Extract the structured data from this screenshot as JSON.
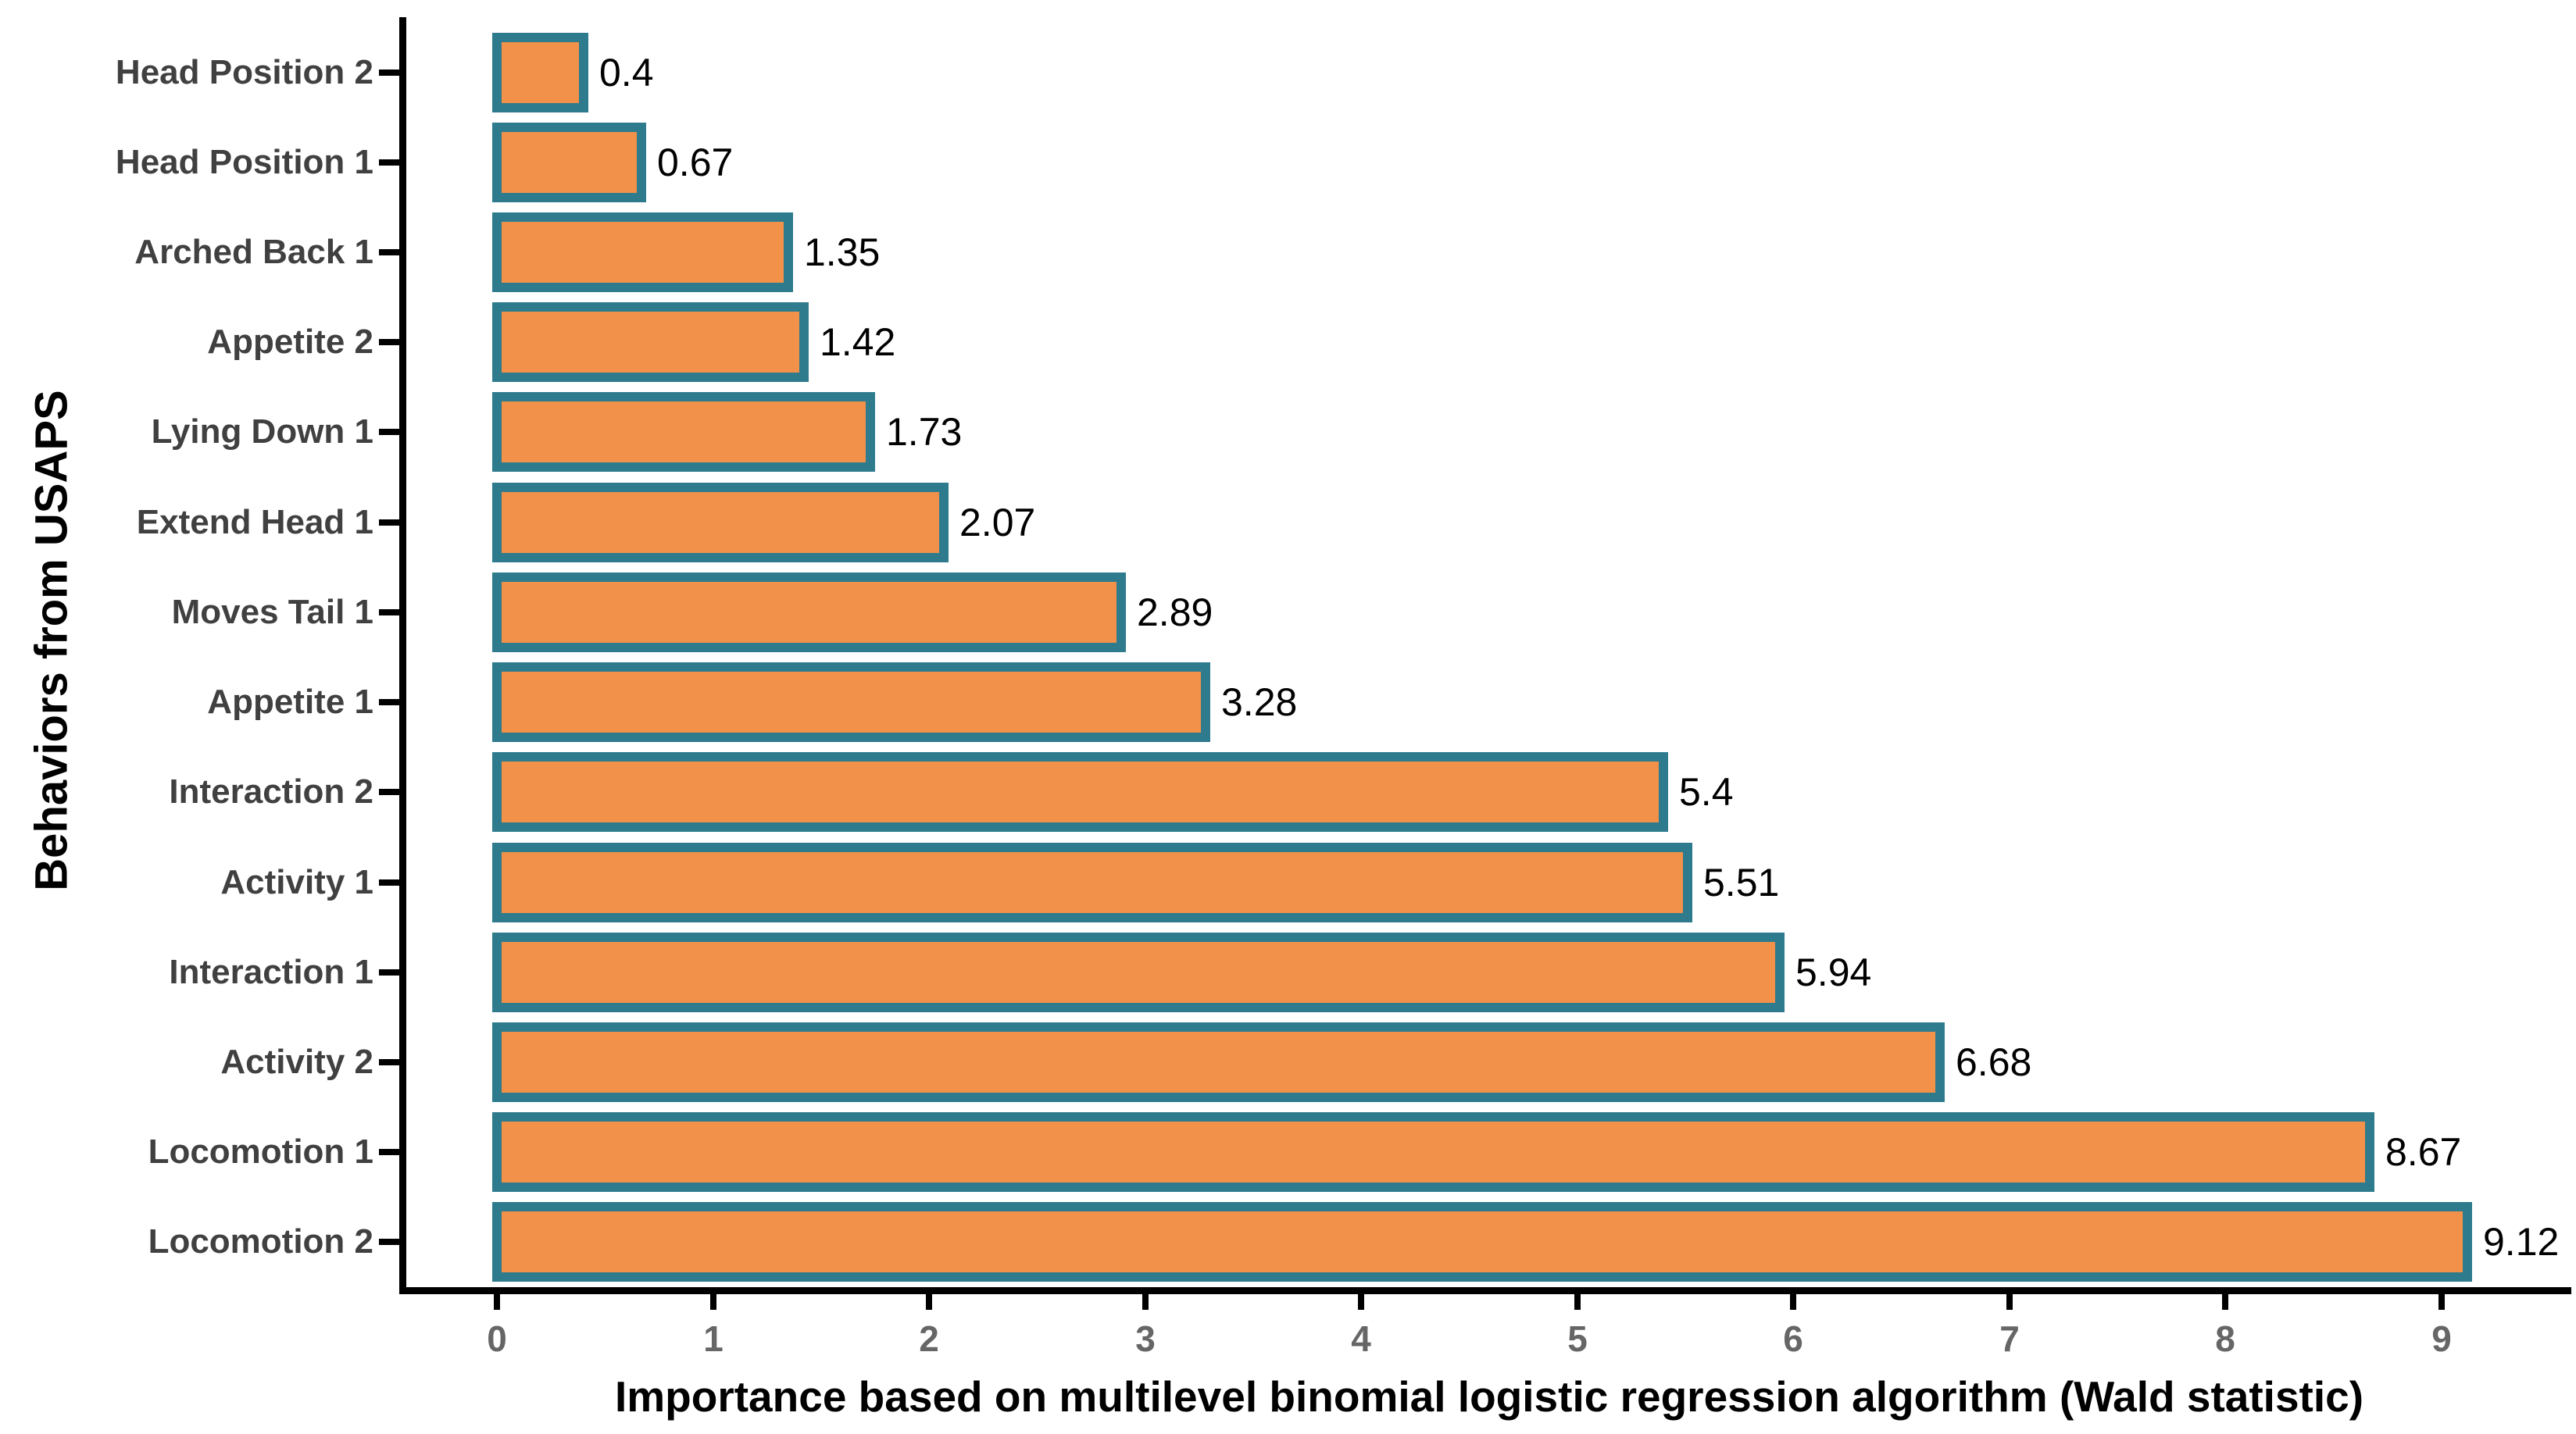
{
  "chart_data": {
    "type": "bar",
    "orientation": "horizontal",
    "title": "",
    "xlabel": "Importance based on multilevel binomial logistic regression algorithm (Wald statistic)",
    "ylabel": "Behaviors from USAPS",
    "categories": [
      "Head Position 2",
      "Head Position 1",
      "Arched Back 1",
      "Appetite 2",
      "Lying Down 1",
      "Extend Head 1",
      "Moves Tail 1",
      "Appetite 1",
      "Interaction 2",
      "Activity 1",
      "Interaction 1",
      "Activity 2",
      "Locomotion 1",
      "Locomotion 2"
    ],
    "values": [
      0.4,
      0.67,
      1.35,
      1.42,
      1.73,
      2.07,
      2.89,
      3.28,
      5.4,
      5.51,
      5.94,
      6.68,
      8.67,
      9.12
    ],
    "value_labels": [
      "0.4",
      "0.67",
      "1.35",
      "1.42",
      "1.73",
      "2.07",
      "2.89",
      "3.28",
      "5.4",
      "5.51",
      "5.94",
      "6.68",
      "8.67",
      "9.12"
    ],
    "x_tick_labels": [
      "0",
      "1",
      "2",
      "3",
      "4",
      "5",
      "6",
      "7",
      "8",
      "9"
    ],
    "x_tick_values": [
      0,
      1,
      2,
      3,
      4,
      5,
      6,
      7,
      8,
      9
    ],
    "xlim": [
      0,
      9.6
    ],
    "grid": false,
    "legend": false,
    "colors": {
      "bar_fill": "#F2914A",
      "bar_border": "#2E7B8D",
      "category_text": "#404040",
      "tick_text": "#666666",
      "axis_line": "#000000",
      "title_text": "#000000",
      "background": "#FFFFFF"
    }
  }
}
